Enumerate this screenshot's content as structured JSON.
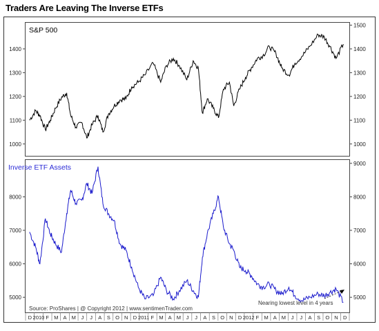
{
  "title": "Traders Are Leaving The Inverse ETFs",
  "source_note": "Source:  ProShares   |   @ Copyright 2012   |   www.sentimenTrader.com",
  "annotation": "Nearing lowest level in 4 years",
  "colors": {
    "sp500_line": "#000000",
    "inverse_line": "#1a1acc",
    "inverse_label": "#2b2bd6",
    "frame": "#333333"
  },
  "chart_data": [
    {
      "type": "line",
      "title": "S&P 500",
      "ylim": [
        950,
        1510
      ],
      "yticks": [
        1000,
        1100,
        1200,
        1300,
        1400,
        1500
      ],
      "x": [
        "2009-12-15",
        "2010-01-05",
        "2010-01-20",
        "2010-02-08",
        "2010-02-25",
        "2010-03-15",
        "2010-04-05",
        "2010-04-23",
        "2010-05-07",
        "2010-05-25",
        "2010-06-15",
        "2010-07-02",
        "2010-07-20",
        "2010-08-10",
        "2010-08-27",
        "2010-09-15",
        "2010-10-05",
        "2010-10-25",
        "2010-11-15",
        "2010-12-05",
        "2010-12-28",
        "2011-01-20",
        "2011-02-18",
        "2011-03-16",
        "2011-04-05",
        "2011-04-29",
        "2011-05-20",
        "2011-06-15",
        "2011-07-07",
        "2011-07-25",
        "2011-08-08",
        "2011-08-25",
        "2011-09-15",
        "2011-10-03",
        "2011-10-20",
        "2011-11-10",
        "2011-11-25",
        "2011-12-15",
        "2012-01-05",
        "2012-01-25",
        "2012-02-15",
        "2012-03-05",
        "2012-03-28",
        "2012-04-20",
        "2012-05-10",
        "2012-06-04",
        "2012-06-25",
        "2012-07-20",
        "2012-08-15",
        "2012-09-14",
        "2012-10-05",
        "2012-10-25",
        "2012-11-15",
        "2012-12-10"
      ],
      "values": [
        1100,
        1140,
        1120,
        1060,
        1100,
        1150,
        1195,
        1215,
        1120,
        1070,
        1090,
        1025,
        1080,
        1120,
        1050,
        1125,
        1160,
        1185,
        1190,
        1240,
        1260,
        1290,
        1340,
        1260,
        1330,
        1360,
        1330,
        1270,
        1350,
        1320,
        1130,
        1190,
        1150,
        1110,
        1230,
        1260,
        1160,
        1230,
        1280,
        1320,
        1360,
        1370,
        1410,
        1380,
        1320,
        1290,
        1340,
        1370,
        1410,
        1460,
        1450,
        1410,
        1360,
        1420
      ]
    },
    {
      "type": "line",
      "title": "Inverse ETF Assets",
      "ylim": [
        4550,
        9100
      ],
      "yticks_left": [
        5000,
        6000,
        7000,
        8000
      ],
      "yticks_right": [
        5000,
        6000,
        7000,
        8000,
        9000
      ],
      "x": [
        "2009-12-15",
        "2010-01-05",
        "2010-01-20",
        "2010-02-08",
        "2010-02-25",
        "2010-03-15",
        "2010-04-05",
        "2010-04-23",
        "2010-05-07",
        "2010-05-25",
        "2010-06-15",
        "2010-07-02",
        "2010-07-20",
        "2010-08-10",
        "2010-08-27",
        "2010-09-15",
        "2010-10-05",
        "2010-10-25",
        "2010-11-15",
        "2010-12-05",
        "2010-12-28",
        "2011-01-20",
        "2011-02-18",
        "2011-03-16",
        "2011-04-05",
        "2011-04-29",
        "2011-05-20",
        "2011-06-15",
        "2011-07-07",
        "2011-07-25",
        "2011-08-08",
        "2011-08-25",
        "2011-09-15",
        "2011-10-03",
        "2011-10-20",
        "2011-11-10",
        "2011-11-25",
        "2011-12-15",
        "2012-01-05",
        "2012-01-25",
        "2012-02-15",
        "2012-03-05",
        "2012-03-28",
        "2012-04-20",
        "2012-05-10",
        "2012-06-04",
        "2012-06-25",
        "2012-07-20",
        "2012-08-15",
        "2012-09-14",
        "2012-10-05",
        "2012-10-25",
        "2012-11-15",
        "2012-12-10"
      ],
      "values": [
        6950,
        6500,
        6000,
        7350,
        6900,
        6600,
        6350,
        7500,
        8200,
        7800,
        7900,
        8400,
        8100,
        8900,
        7800,
        7500,
        7300,
        6600,
        6400,
        5900,
        5300,
        4950,
        5050,
        5600,
        5200,
        4950,
        5200,
        5500,
        5200,
        5000,
        6200,
        6900,
        7500,
        8000,
        7100,
        6600,
        6400,
        5900,
        5800,
        5650,
        5400,
        5300,
        5400,
        5200,
        5100,
        5300,
        5050,
        4900,
        5000,
        5100,
        5050,
        5150,
        5250,
        4850
      ]
    }
  ],
  "x_axis": {
    "months": [
      "D",
      "2010",
      "F",
      "M",
      "A",
      "M",
      "J",
      "J",
      "A",
      "S",
      "O",
      "N",
      "D",
      "2011",
      "F",
      "M",
      "A",
      "M",
      "J",
      "J",
      "A",
      "S",
      "O",
      "N",
      "D",
      "2012",
      "F",
      "M",
      "A",
      "M",
      "J",
      "J",
      "A",
      "S",
      "O",
      "N",
      "D"
    ]
  }
}
